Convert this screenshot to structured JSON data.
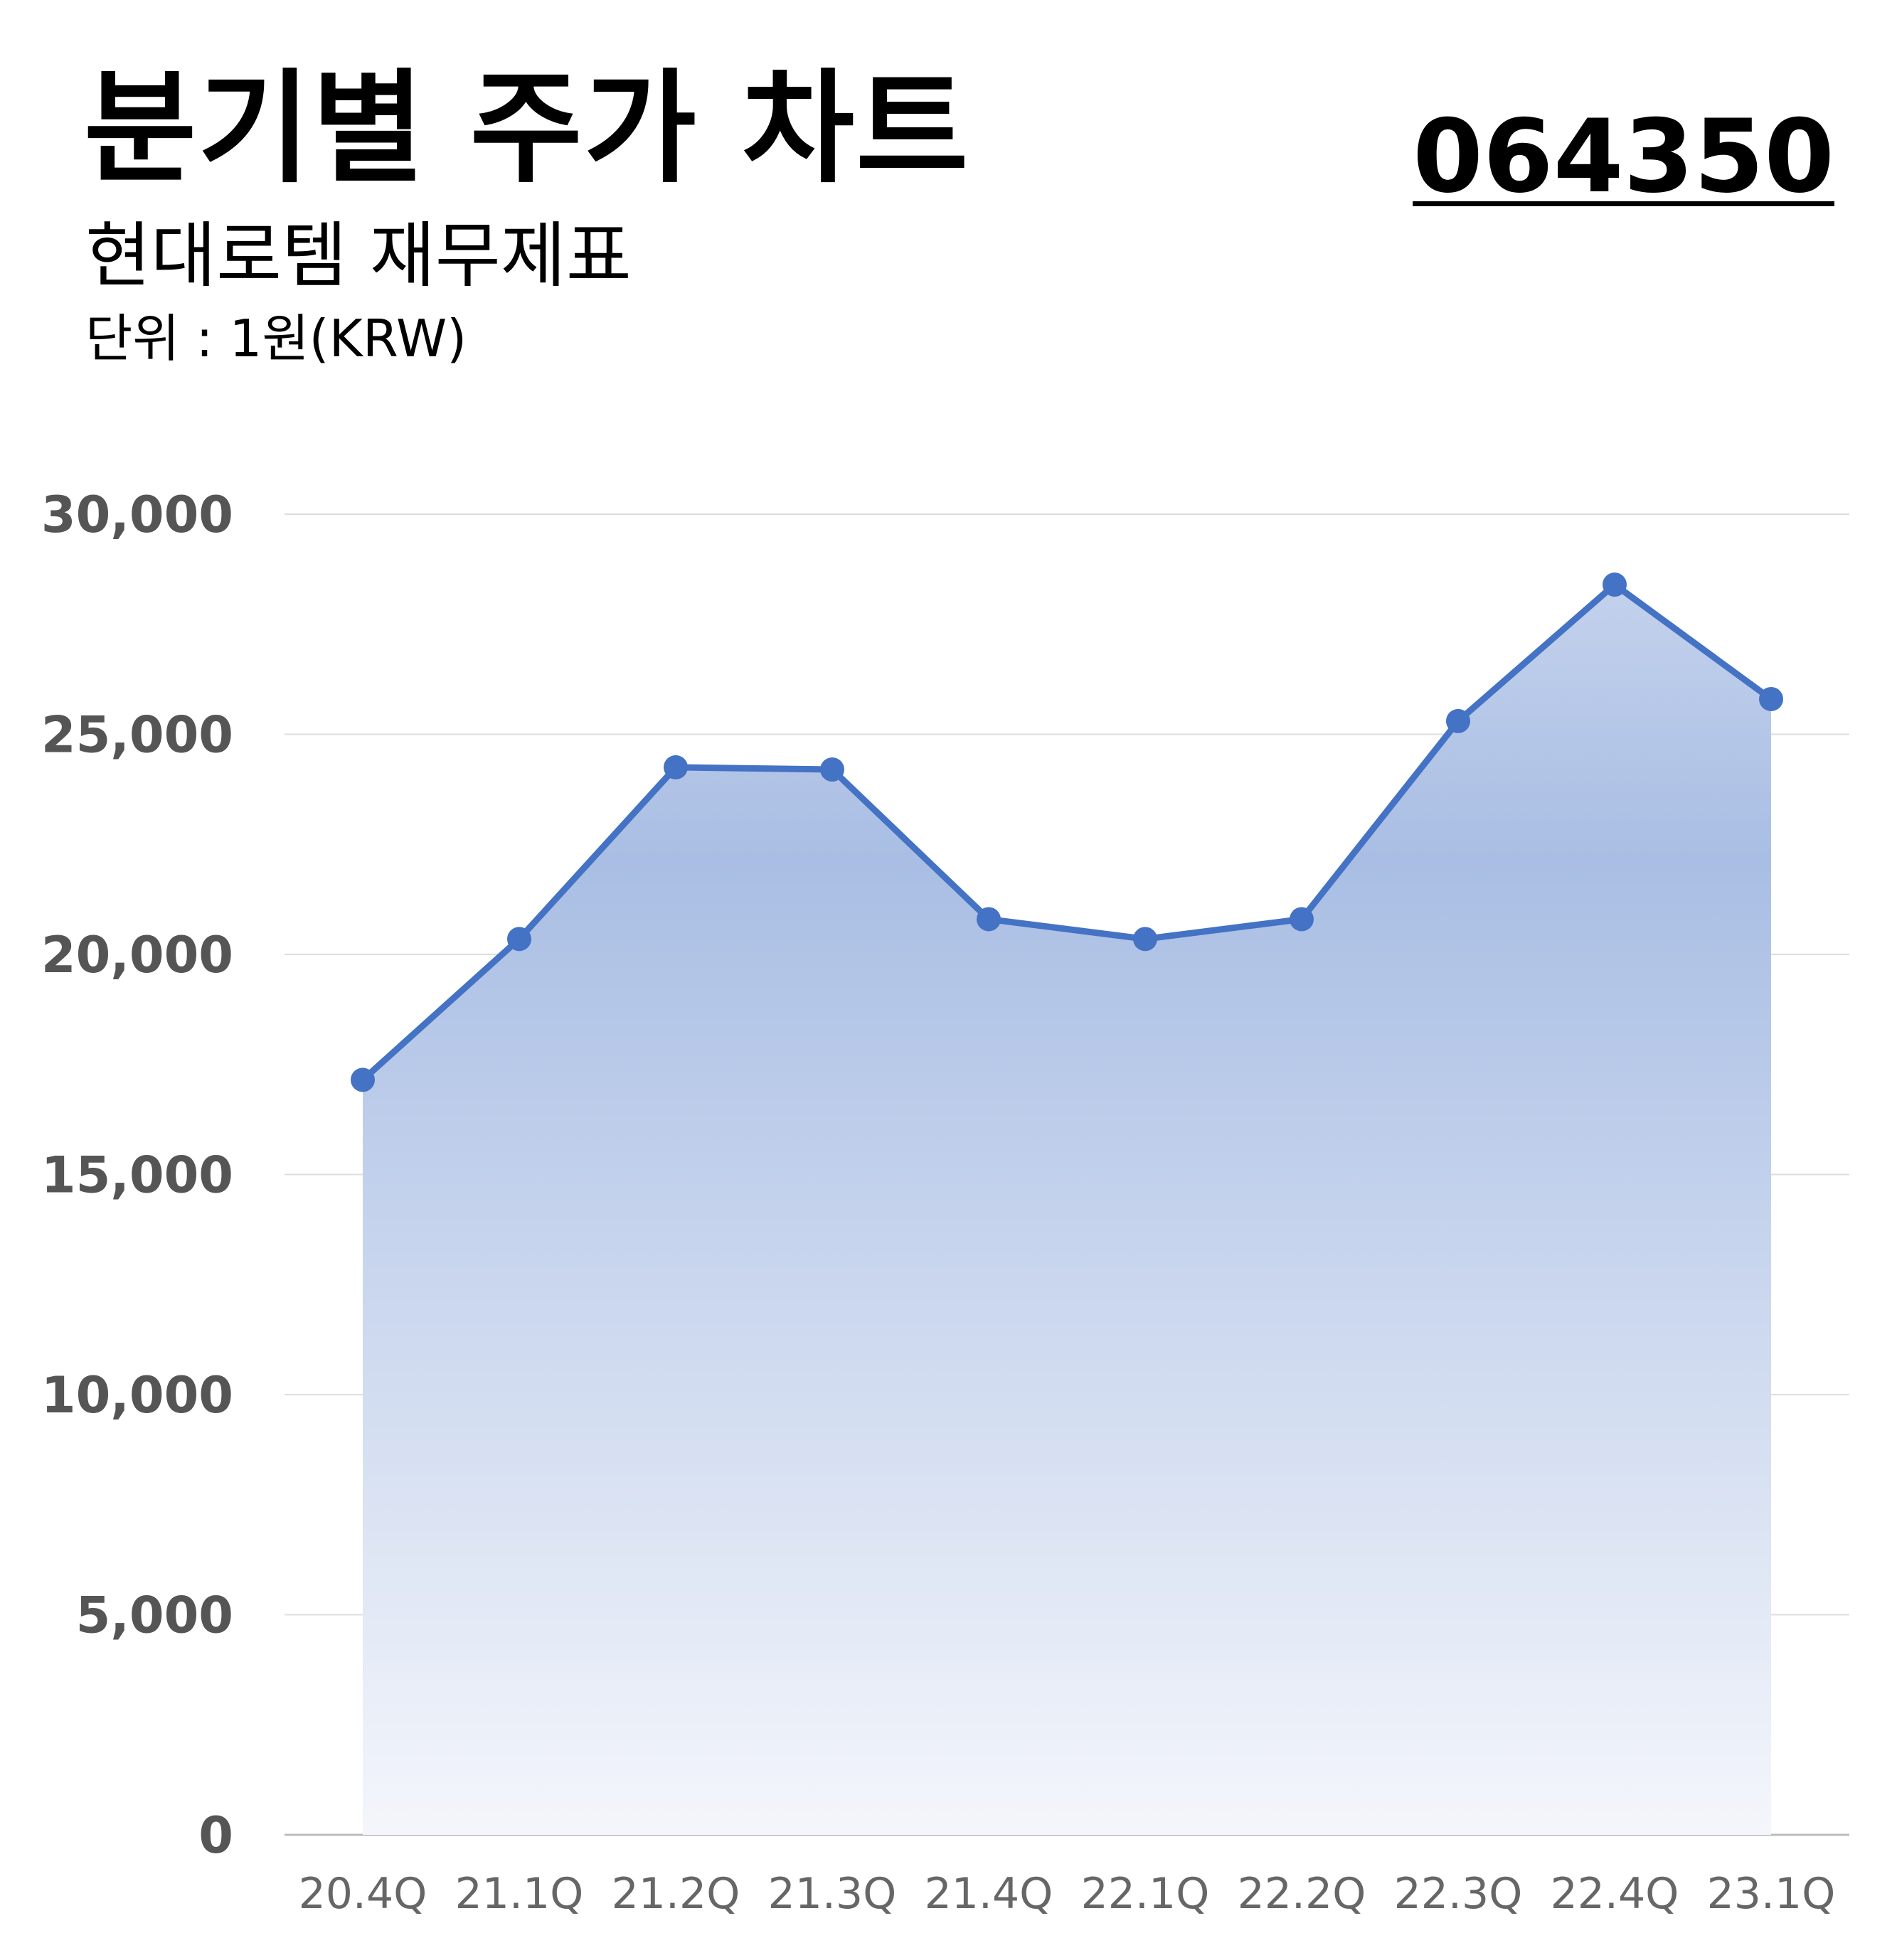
{
  "header": {
    "title": "분기별 주가 차트",
    "code": "064350",
    "subtitle": "현대로템 재무제표",
    "unit": "단위 : 1원(KRW)"
  },
  "chart_data": {
    "type": "area",
    "categories": [
      "20.4Q",
      "21.1Q",
      "21.2Q",
      "21.3Q",
      "21.4Q",
      "22.1Q",
      "22.2Q",
      "22.3Q",
      "22.4Q",
      "23.1Q"
    ],
    "values": [
      17150,
      20350,
      24250,
      24200,
      20800,
      20350,
      20800,
      25300,
      28400,
      25800
    ],
    "title": "분기별 주가 차트",
    "ylim": [
      0,
      30000
    ],
    "yticks": [
      "0",
      "5,000",
      "10,000",
      "15,000",
      "20,000",
      "25,000",
      "30,000"
    ],
    "ytick_values": [
      0,
      5000,
      10000,
      15000,
      20000,
      25000,
      30000
    ],
    "grid": true,
    "legend": "none",
    "colors": {
      "line": "#4472C4",
      "fill": "#A9BEE4",
      "grid": "#DDDDDD",
      "axis": "#BBBBBB"
    }
  }
}
